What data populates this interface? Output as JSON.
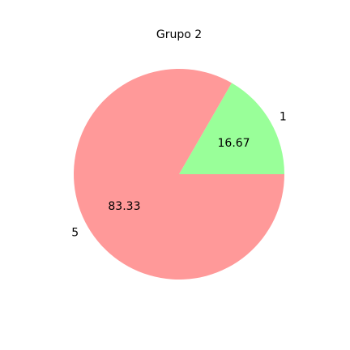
{
  "chart_data": {
    "type": "pie",
    "title": "Grupo 2",
    "categories": [
      "1",
      "5"
    ],
    "values": [
      16.67,
      83.33
    ],
    "percent_labels": [
      "16.67",
      "83.33"
    ],
    "colors": [
      "#99ff99",
      "#ff9999"
    ],
    "legend": "none",
    "grid": false
  }
}
